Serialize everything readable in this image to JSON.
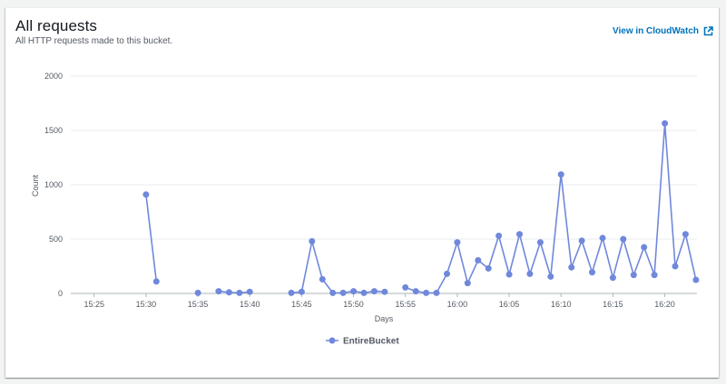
{
  "widget": {
    "title": "All requests",
    "subtitle": "All HTTP requests made to this bucket.",
    "link_label": "View in CloudWatch",
    "link_icon": "external-link-icon"
  },
  "colors": {
    "series": "#7088db",
    "grid": "#e9ebed",
    "link": "#0073bb"
  },
  "chart_data": {
    "type": "line",
    "xlabel": "Days",
    "ylabel": "Count",
    "ylim": [
      0,
      2000
    ],
    "yticks": [
      0,
      500,
      1000,
      1500,
      2000
    ],
    "xlim": [
      "15:23",
      "16:23"
    ],
    "xticks": [
      "15:25",
      "15:30",
      "15:35",
      "15:40",
      "15:45",
      "15:50",
      "15:55",
      "16:00",
      "16:05",
      "16:10",
      "16:15",
      "16:20"
    ],
    "grid": true,
    "legend_position": "bottom",
    "series": [
      {
        "name": "EntireBucket",
        "segments": [
          [
            [
              "15:30",
              910
            ],
            [
              "15:31",
              110
            ]
          ],
          [
            [
              "15:35",
              5
            ]
          ],
          [
            [
              "15:37",
              20
            ],
            [
              "15:38",
              10
            ],
            [
              "15:39",
              5
            ],
            [
              "15:40",
              15
            ]
          ],
          [
            [
              "15:44",
              5
            ],
            [
              "15:45",
              15
            ],
            [
              "15:46",
              480
            ],
            [
              "15:47",
              130
            ],
            [
              "15:48",
              5
            ],
            [
              "15:49",
              5
            ],
            [
              "15:50",
              20
            ],
            [
              "15:51",
              5
            ],
            [
              "15:52",
              20
            ],
            [
              "15:53",
              15
            ]
          ],
          [
            [
              "15:55",
              55
            ],
            [
              "15:56",
              20
            ],
            [
              "15:57",
              5
            ],
            [
              "15:58",
              5
            ],
            [
              "15:59",
              180
            ],
            [
              "16:00",
              470
            ],
            [
              "16:01",
              95
            ],
            [
              "16:02",
              305
            ],
            [
              "16:03",
              230
            ],
            [
              "16:04",
              530
            ],
            [
              "16:05",
              175
            ],
            [
              "16:06",
              545
            ],
            [
              "16:07",
              180
            ],
            [
              "16:08",
              470
            ],
            [
              "16:09",
              155
            ],
            [
              "16:10",
              1095
            ],
            [
              "16:11",
              240
            ],
            [
              "16:12",
              485
            ],
            [
              "16:13",
              195
            ],
            [
              "16:14",
              510
            ],
            [
              "16:15",
              145
            ],
            [
              "16:16",
              500
            ],
            [
              "16:17",
              170
            ],
            [
              "16:18",
              425
            ],
            [
              "16:19",
              170
            ],
            [
              "16:20",
              1565
            ],
            [
              "16:21",
              250
            ],
            [
              "16:22",
              545
            ],
            [
              "16:23",
              125
            ]
          ]
        ]
      }
    ]
  }
}
